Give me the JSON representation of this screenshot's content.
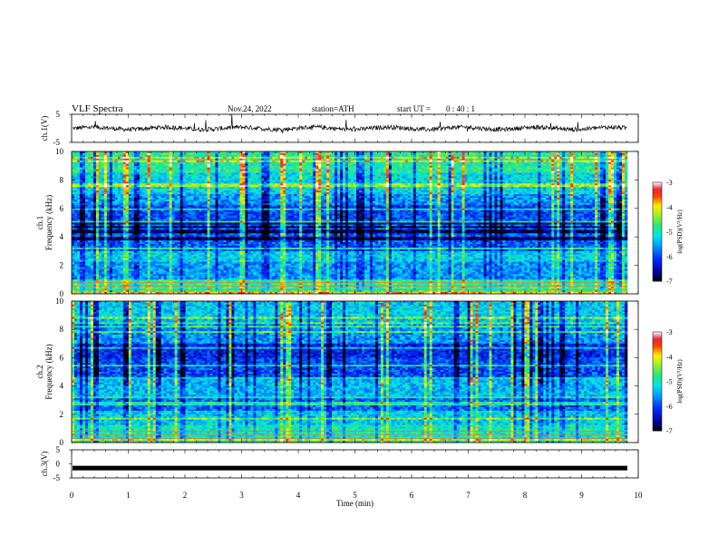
{
  "header": {
    "title": "VLF  Spectra",
    "date": "Nov.24, 2022",
    "station": "station=ATH",
    "start_ut_label": "start  UT  =",
    "start_ut_value": "0 : 40 : 1"
  },
  "chart_data": [
    {
      "type": "line",
      "panel": "ch1-waveform",
      "ylabel": "ch.1(V)",
      "ylim": [
        -5,
        5
      ],
      "yticks": [
        "5",
        "-5"
      ],
      "xlim": [
        0,
        10
      ],
      "mean_value": 0.0,
      "color": "#000000"
    },
    {
      "type": "heatmap",
      "panel": "ch1-spectrogram",
      "ylabel": "ch.1\nFrequency  (kHz)",
      "ylabel_lines": [
        "ch.1",
        "Frequency  (kHz)"
      ],
      "ylim": [
        0,
        10
      ],
      "yticks": [
        "0",
        "2",
        "4",
        "6",
        "8",
        "10"
      ],
      "xlim": [
        0,
        9.8
      ],
      "colorbar": {
        "label": "log(PSD)(V²/Hz)",
        "ticks": [
          "-3",
          "-4",
          "-5",
          "-6",
          "-7"
        ],
        "range": [
          -7,
          -3
        ]
      },
      "bands_khz": [
        {
          "from": 0,
          "to": 1.0,
          "level": -4.8
        },
        {
          "from": 1.0,
          "to": 2.2,
          "level": -5.6
        },
        {
          "from": 2.2,
          "to": 3.0,
          "level": -5.3
        },
        {
          "from": 3.0,
          "to": 3.8,
          "level": -5.9
        },
        {
          "from": 3.8,
          "to": 5.0,
          "level": -6.8
        },
        {
          "from": 5.0,
          "to": 6.2,
          "level": -6.0
        },
        {
          "from": 6.2,
          "to": 7.0,
          "level": -5.6
        },
        {
          "from": 7.0,
          "to": 8.5,
          "level": -5.2
        },
        {
          "from": 8.5,
          "to": 10.0,
          "level": -4.9
        }
      ]
    },
    {
      "type": "heatmap",
      "panel": "ch2-spectrogram",
      "ylabel": "ch.2\nFrequency  (kHz)",
      "ylabel_lines": [
        "ch.2",
        "Frequency  (kHz)"
      ],
      "ylim": [
        0,
        10
      ],
      "yticks": [
        "0",
        "2",
        "4",
        "6",
        "8",
        "10"
      ],
      "xlim": [
        0,
        9.8
      ],
      "colorbar": {
        "label": "log(PSD)(V²/Hz)",
        "ticks": [
          "-3",
          "-4",
          "-5",
          "-6",
          "-7"
        ],
        "range": [
          -7,
          -3
        ]
      },
      "bands_khz": [
        {
          "from": 0,
          "to": 1.2,
          "level": -5.0
        },
        {
          "from": 1.2,
          "to": 2.2,
          "level": -5.3
        },
        {
          "from": 2.2,
          "to": 3.3,
          "level": -5.8
        },
        {
          "from": 3.3,
          "to": 4.5,
          "level": -5.4
        },
        {
          "from": 4.5,
          "to": 6.0,
          "level": -6.0
        },
        {
          "from": 6.0,
          "to": 7.0,
          "level": -6.2
        },
        {
          "from": 7.0,
          "to": 8.5,
          "level": -5.6
        },
        {
          "from": 8.5,
          "to": 10.0,
          "level": -5.3
        }
      ]
    },
    {
      "type": "line",
      "panel": "ch3-waveform",
      "ylabel": "ch.3(V)",
      "ylim": [
        -5,
        5
      ],
      "yticks": [
        "5",
        "0",
        "-5"
      ],
      "xlim": [
        0,
        10
      ],
      "mean_value": -1.5,
      "color": "#000000"
    }
  ],
  "xaxis": {
    "label": "Time  (min)",
    "ticks": [
      "0",
      "1",
      "2",
      "3",
      "4",
      "5",
      "6",
      "7",
      "8",
      "9",
      "10"
    ],
    "xlim": [
      0,
      10
    ]
  }
}
